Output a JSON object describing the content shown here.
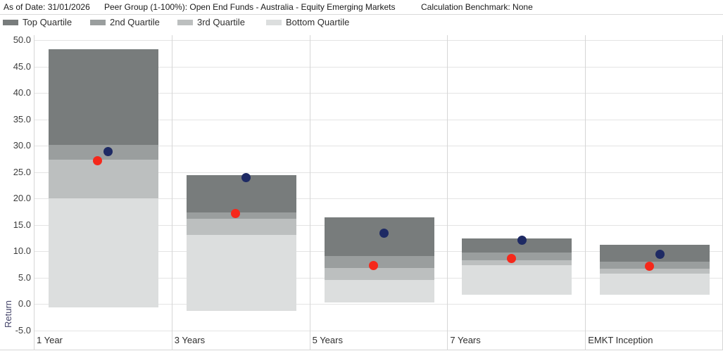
{
  "header": {
    "as_of_label": "As of Date: 31/01/2026",
    "peer_group_label": "Peer Group (1-100%): Open End Funds - Australia - Equity Emerging Markets",
    "benchmark_label": "Calculation Benchmark: None"
  },
  "legend": {
    "position": "top",
    "items": [
      {
        "label": "Top Quartile",
        "color": "#787c7c"
      },
      {
        "label": "2nd Quartile",
        "color": "#9a9e9e"
      },
      {
        "label": "3rd Quartile",
        "color": "#bcbfbf"
      },
      {
        "label": "Bottom Quartile",
        "color": "#dcdede"
      }
    ]
  },
  "chart_data": {
    "type": "bar",
    "subtype": "stacked-quartile-range-bars-with-scatter-markers",
    "title": "",
    "xlabel": "",
    "ylabel": "Return",
    "ylim": [
      -5.0,
      50.0
    ],
    "ytick_step": 5,
    "ytick_format": "one-decimal",
    "grid": true,
    "categories": [
      "1 Year",
      "3 Years",
      "5 Years",
      "7 Years",
      "EMKT Inception"
    ],
    "quartile_bands": [
      {
        "category": "1 Year",
        "max": 48.3,
        "q1_bottom": 30.2,
        "q2_bottom": 27.4,
        "q3_bottom": 20.0,
        "min": -0.6
      },
      {
        "category": "3 Years",
        "max": 24.4,
        "q1_bottom": 17.4,
        "q2_bottom": 16.2,
        "q3_bottom": 13.1,
        "min": -1.3
      },
      {
        "category": "5 Years",
        "max": 16.4,
        "q1_bottom": 9.1,
        "q2_bottom": 6.8,
        "q3_bottom": 4.6,
        "min": 0.3
      },
      {
        "category": "7 Years",
        "max": 12.4,
        "q1_bottom": 9.7,
        "q2_bottom": 8.3,
        "q3_bottom": 7.3,
        "min": 1.7
      },
      {
        "category": "EMKT Inception",
        "max": 11.2,
        "q1_bottom": 8.0,
        "q2_bottom": 6.7,
        "q3_bottom": 5.8,
        "min": 1.7
      }
    ],
    "series": [
      {
        "name": "red-marker-series",
        "marker": "circle",
        "color": "#f5281b",
        "x_offset": -7,
        "values": [
          27.2,
          17.1,
          7.3,
          8.6,
          7.2
        ]
      },
      {
        "name": "navy-marker-series",
        "marker": "circle",
        "color": "#1e2a64",
        "x_offset": 8,
        "values": [
          28.9,
          24.0,
          13.4,
          12.1,
          9.4
        ]
      }
    ]
  }
}
